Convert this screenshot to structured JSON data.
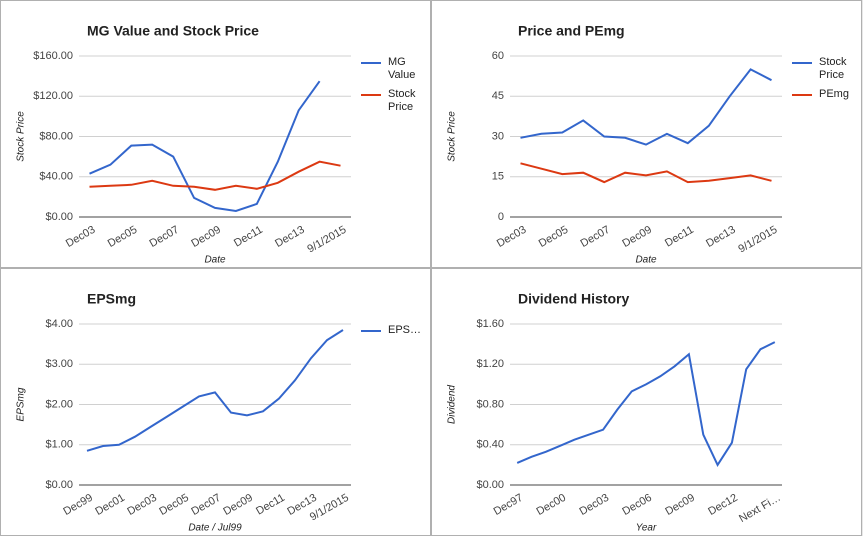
{
  "chart_data": [
    {
      "type": "line",
      "title": "MG Value and Stock Price",
      "y_label": "Stock Price",
      "x_label": "Date",
      "categories": [
        "Dec03",
        null,
        "Dec05",
        null,
        "Dec07",
        null,
        "Dec09",
        null,
        "Dec11",
        null,
        "Dec13",
        null,
        "9/1/2015"
      ],
      "series": [
        {
          "name": "MG Value",
          "color": "#3366cc",
          "values": [
            43,
            52,
            71,
            72,
            60,
            19,
            9,
            6,
            13,
            55,
            106,
            135,
            null
          ]
        },
        {
          "name": "Stock Price",
          "color": "#dc3912",
          "values": [
            30,
            31,
            32,
            36,
            31,
            30,
            27,
            31,
            28,
            34,
            45,
            55,
            51
          ]
        }
      ],
      "ylim": [
        0,
        160
      ],
      "yticks": [
        {
          "value": 0,
          "label": "$0.00"
        },
        {
          "value": 40,
          "label": "$40.00"
        },
        {
          "value": 80,
          "label": "$80.00"
        },
        {
          "value": 120,
          "label": "$120.00"
        },
        {
          "value": 160,
          "label": "$160.00"
        }
      ],
      "grid": true,
      "legend": "right"
    },
    {
      "type": "line",
      "title": "Price and PEmg",
      "y_label": "Stock Price",
      "x_label": "Date",
      "categories": [
        "Dec03",
        null,
        "Dec05",
        null,
        "Dec07",
        null,
        "Dec09",
        null,
        "Dec11",
        null,
        "Dec13",
        null,
        "9/1/2015"
      ],
      "series": [
        {
          "name": "Stock Price",
          "color": "#3366cc",
          "values": [
            29.5,
            31,
            31.5,
            36,
            30,
            29.5,
            27,
            31,
            27.5,
            34,
            45,
            55,
            51
          ]
        },
        {
          "name": "PEmg",
          "color": "#dc3912",
          "values": [
            20,
            18,
            16,
            16.5,
            13,
            16.5,
            15.5,
            17,
            13,
            13.5,
            14.5,
            15.5,
            13.5
          ]
        }
      ],
      "ylim": [
        0,
        60
      ],
      "yticks": [
        0,
        15,
        30,
        45,
        60
      ],
      "grid": true,
      "legend": "right"
    },
    {
      "type": "line",
      "title": "EPSmg",
      "y_label": "EPSmg",
      "x_label": "Date / Jul99",
      "categories": [
        "Dec99",
        null,
        "Dec01",
        null,
        "Dec03",
        null,
        "Dec05",
        null,
        "Dec07",
        null,
        "Dec09",
        null,
        "Dec11",
        null,
        "Dec13",
        null,
        "9/1/2015"
      ],
      "series": [
        {
          "name": "EPS…",
          "color": "#3366cc",
          "values": [
            0.85,
            0.97,
            1.0,
            1.2,
            1.45,
            1.7,
            1.95,
            2.2,
            2.3,
            1.8,
            1.73,
            1.83,
            2.15,
            2.6,
            3.15,
            3.6,
            3.85
          ]
        }
      ],
      "ylim": [
        0,
        4
      ],
      "yticks": [
        {
          "value": 0,
          "label": "$0.00"
        },
        {
          "value": 1,
          "label": "$1.00"
        },
        {
          "value": 2,
          "label": "$2.00"
        },
        {
          "value": 3,
          "label": "$3.00"
        },
        {
          "value": 4,
          "label": "$4.00"
        }
      ],
      "grid": true,
      "legend": "right"
    },
    {
      "type": "line",
      "title": "Dividend History",
      "y_label": "Dividend",
      "x_label": "Year",
      "categories": [
        "Dec97",
        null,
        null,
        "Dec00",
        null,
        null,
        "Dec03",
        null,
        null,
        "Dec06",
        null,
        null,
        "Dec09",
        null,
        null,
        "Dec12",
        null,
        null,
        "Next Fi…"
      ],
      "series": [
        {
          "color": "#3366cc",
          "values": [
            0.22,
            0.28,
            0.33,
            0.39,
            0.45,
            0.5,
            0.55,
            0.75,
            0.93,
            1.0,
            1.08,
            1.18,
            1.3,
            0.5,
            0.2,
            0.42,
            1.15,
            1.35,
            1.42
          ]
        }
      ],
      "ylim": [
        0,
        1.6
      ],
      "yticks": [
        {
          "value": 0,
          "label": "$0.00"
        },
        {
          "value": 0.4,
          "label": "$0.40"
        },
        {
          "value": 0.8,
          "label": "$0.80"
        },
        {
          "value": 1.2,
          "label": "$1.20"
        },
        {
          "value": 1.6,
          "label": "$1.60"
        }
      ],
      "grid": true
    }
  ]
}
